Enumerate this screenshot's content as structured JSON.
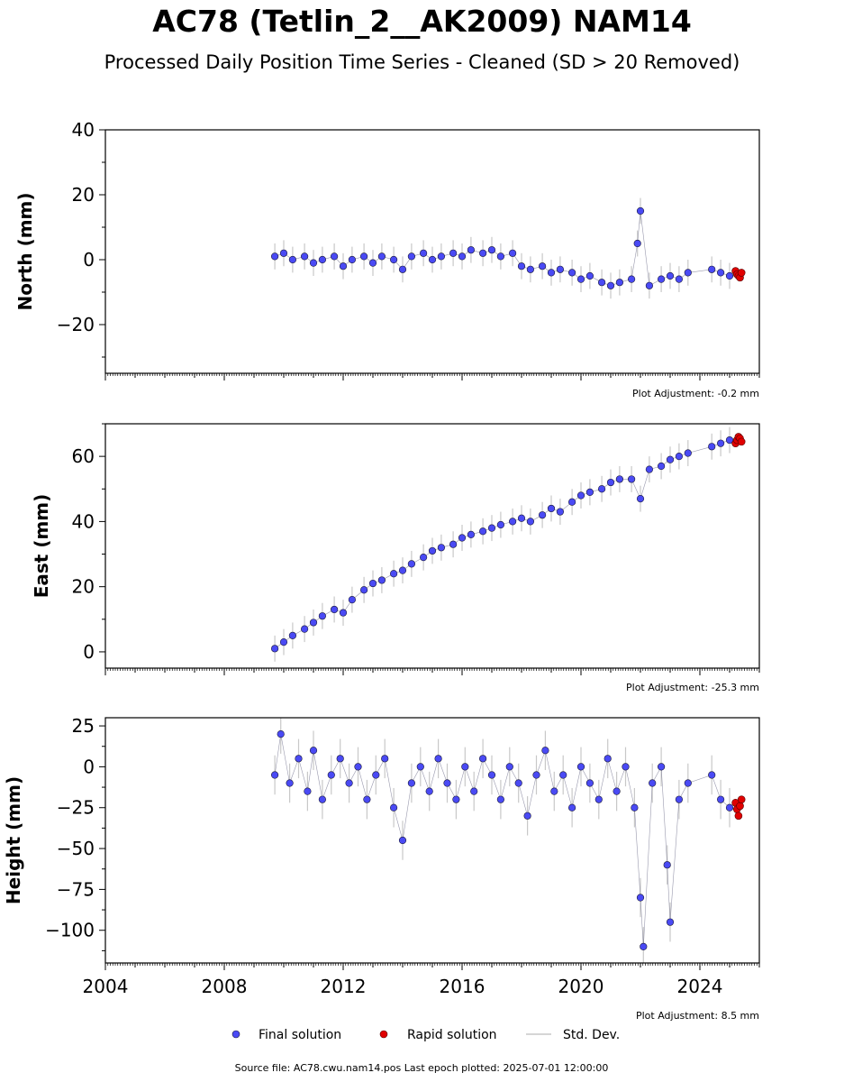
{
  "title": "AC78 (Tetlin_2__AK2009) NAM14",
  "subtitle": "Processed Daily Position Time Series - Cleaned (SD > 20 Removed)",
  "colors": {
    "final": "#4a4af4",
    "rapid": "#e00000",
    "stddev": "#c8c8c8",
    "edge": "#1a1a3a"
  },
  "legend": {
    "final_label": "Final solution",
    "rapid_label": "Rapid solution",
    "stddev_label": "Std. Dev."
  },
  "footer": "Source file: AC78.cwu.nam14.pos  Last epoch plotted: 2025-07-01 12:00:00",
  "chart_data": [
    {
      "type": "scatter",
      "ylabel": "North (mm)",
      "adjustment": "Plot Adjustment: -0.2 mm",
      "xlim": [
        2004,
        2026
      ],
      "ylim": [
        -35,
        40
      ],
      "yticks": [
        -20,
        0,
        20,
        40
      ],
      "ytick_labels": [
        "−20",
        "0",
        "20",
        "40"
      ],
      "final_x": [
        2009.7,
        2010.0,
        2010.3,
        2010.7,
        2011.0,
        2011.3,
        2011.7,
        2012.0,
        2012.3,
        2012.7,
        2013.0,
        2013.3,
        2013.7,
        2014.0,
        2014.3,
        2014.7,
        2015.0,
        2015.3,
        2015.7,
        2016.0,
        2016.3,
        2016.7,
        2017.0,
        2017.3,
        2017.7,
        2018.0,
        2018.3,
        2018.7,
        2019.0,
        2019.3,
        2019.7,
        2020.0,
        2020.3,
        2020.7,
        2021.0,
        2021.3,
        2021.7,
        2021.9,
        2022.0,
        2022.3,
        2022.7,
        2023.0,
        2023.3,
        2023.6,
        2024.4,
        2024.7,
        2025.0
      ],
      "final_y": [
        1,
        2,
        0,
        1,
        -1,
        0,
        1,
        -2,
        0,
        1,
        -1,
        1,
        0,
        -3,
        1,
        2,
        0,
        1,
        2,
        1,
        3,
        2,
        3,
        1,
        2,
        -2,
        -3,
        -2,
        -4,
        -3,
        -4,
        -6,
        -5,
        -7,
        -8,
        -7,
        -6,
        5,
        15,
        -8,
        -6,
        -5,
        -6,
        -4,
        -3,
        -4,
        -5
      ],
      "rapid_x": [
        2025.2,
        2025.25,
        2025.3,
        2025.35,
        2025.4
      ],
      "rapid_y": [
        -3.5,
        -4.5,
        -5,
        -5.5,
        -4
      ]
    },
    {
      "type": "scatter",
      "ylabel": "East (mm)",
      "adjustment": "Plot Adjustment: -25.3 mm",
      "xlim": [
        2004,
        2026
      ],
      "ylim": [
        -5,
        70
      ],
      "yticks": [
        0,
        20,
        40,
        60
      ],
      "ytick_labels": [
        "0",
        "20",
        "40",
        "60"
      ],
      "final_x": [
        2009.7,
        2010.0,
        2010.3,
        2010.7,
        2011.0,
        2011.3,
        2011.7,
        2012.0,
        2012.3,
        2012.7,
        2013.0,
        2013.3,
        2013.7,
        2014.0,
        2014.3,
        2014.7,
        2015.0,
        2015.3,
        2015.7,
        2016.0,
        2016.3,
        2016.7,
        2017.0,
        2017.3,
        2017.7,
        2018.0,
        2018.3,
        2018.7,
        2019.0,
        2019.3,
        2019.7,
        2020.0,
        2020.3,
        2020.7,
        2021.0,
        2021.3,
        2021.7,
        2022.0,
        2022.3,
        2022.7,
        2023.0,
        2023.3,
        2023.6,
        2024.4,
        2024.7,
        2025.0
      ],
      "final_y": [
        1,
        3,
        5,
        7,
        9,
        11,
        13,
        12,
        16,
        19,
        21,
        22,
        24,
        25,
        27,
        29,
        31,
        32,
        33,
        35,
        36,
        37,
        38,
        39,
        40,
        41,
        40,
        42,
        44,
        43,
        46,
        48,
        49,
        50,
        52,
        53,
        53,
        47,
        56,
        57,
        59,
        60,
        61,
        63,
        64,
        65
      ],
      "rapid_x": [
        2025.2,
        2025.25,
        2025.3,
        2025.35,
        2025.4
      ],
      "rapid_y": [
        64,
        65,
        66,
        65.5,
        64.5
      ]
    },
    {
      "type": "scatter",
      "ylabel": "Height (mm)",
      "adjustment": "Plot Adjustment: 8.5 mm",
      "xlim": [
        2004,
        2026
      ],
      "ylim": [
        -120,
        30
      ],
      "yticks": [
        -100,
        -75,
        -50,
        -25,
        0,
        25
      ],
      "ytick_labels": [
        "−100",
        "−75",
        "−50",
        "−25",
        "0",
        "25"
      ],
      "xticks": [
        2004,
        2008,
        2012,
        2016,
        2020,
        2024
      ],
      "xtick_labels": [
        "2004",
        "2008",
        "2012",
        "2016",
        "2020",
        "2024"
      ],
      "final_x": [
        2009.7,
        2009.9,
        2010.2,
        2010.5,
        2010.8,
        2011.0,
        2011.3,
        2011.6,
        2011.9,
        2012.2,
        2012.5,
        2012.8,
        2013.1,
        2013.4,
        2013.7,
        2014.0,
        2014.3,
        2014.6,
        2014.9,
        2015.2,
        2015.5,
        2015.8,
        2016.1,
        2016.4,
        2016.7,
        2017.0,
        2017.3,
        2017.6,
        2017.9,
        2018.2,
        2018.5,
        2018.8,
        2019.1,
        2019.4,
        2019.7,
        2020.0,
        2020.3,
        2020.6,
        2020.9,
        2021.2,
        2021.5,
        2021.8,
        2022.0,
        2022.1,
        2022.4,
        2022.7,
        2022.9,
        2023.0,
        2023.3,
        2023.6,
        2024.4,
        2024.7,
        2025.0
      ],
      "final_y": [
        -5,
        20,
        -10,
        5,
        -15,
        10,
        -20,
        -5,
        5,
        -10,
        0,
        -20,
        -5,
        5,
        -25,
        -45,
        -10,
        0,
        -15,
        5,
        -10,
        -20,
        0,
        -15,
        5,
        -5,
        -20,
        0,
        -10,
        -30,
        -5,
        10,
        -15,
        -5,
        -25,
        0,
        -10,
        -20,
        5,
        -15,
        0,
        -25,
        -80,
        -110,
        -10,
        0,
        -60,
        -95,
        -20,
        -10,
        -5,
        -20,
        -25
      ],
      "rapid_x": [
        2025.2,
        2025.25,
        2025.3,
        2025.35,
        2025.4
      ],
      "rapid_y": [
        -22,
        -26,
        -30,
        -24,
        -20
      ]
    }
  ]
}
